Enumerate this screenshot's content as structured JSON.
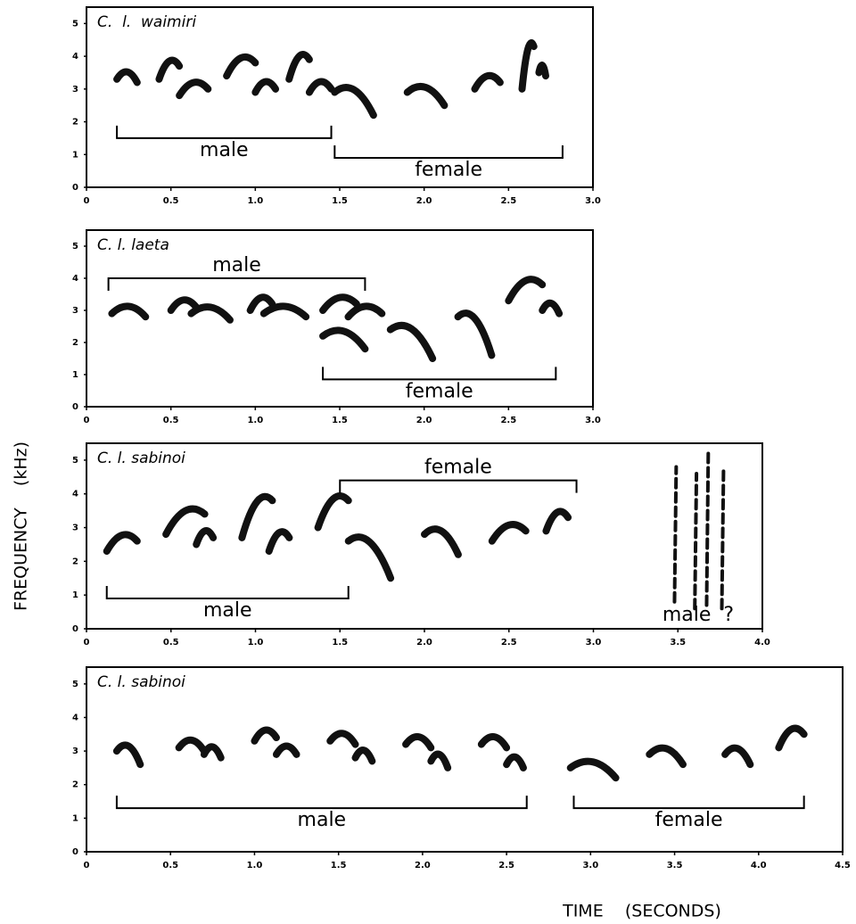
{
  "figure": {
    "xlabel": "TIME    (SECONDS)",
    "ylabel": "FREQUENCY    (kHz)"
  },
  "chart_data": [
    {
      "type": "spectrogram",
      "title": "C.  l.  waimiri",
      "xlim": [
        0,
        3
      ],
      "xticks": [
        0,
        0.5,
        {
          "value": 1,
          "label": "1.0"
        },
        1.5,
        {
          "value": 2,
          "label": "2.0"
        },
        2.5,
        {
          "value": 3,
          "label": "3.0"
        }
      ],
      "ylim": [
        0,
        5.5
      ],
      "yticks": [
        0,
        1,
        2,
        3,
        4,
        5
      ],
      "brackets": [
        {
          "text": "male",
          "start": 0.18,
          "end": 1.45,
          "y": 1.5,
          "open": "up"
        },
        {
          "text": "female",
          "start": 1.47,
          "end": 2.82,
          "y": 0.9,
          "open": "up"
        }
      ],
      "syllables": [
        [
          0.18,
          0.3,
          3.3,
          3.2
        ],
        [
          0.43,
          0.55,
          3.3,
          3.7
        ],
        [
          0.55,
          0.72,
          2.8,
          3.0
        ],
        [
          0.83,
          1.0,
          3.4,
          3.8
        ],
        [
          1.0,
          1.12,
          2.9,
          3.0
        ],
        [
          1.2,
          1.32,
          3.3,
          3.9
        ],
        [
          1.32,
          1.45,
          2.9,
          3.0
        ],
        [
          1.47,
          1.7,
          2.9,
          2.2
        ],
        [
          1.9,
          2.12,
          2.9,
          2.5
        ],
        [
          2.3,
          2.45,
          3.0,
          3.2
        ],
        [
          2.58,
          2.65,
          3.0,
          4.3
        ],
        [
          2.68,
          2.72,
          3.5,
          3.4
        ]
      ]
    },
    {
      "type": "spectrogram",
      "title": "C. l. laeta",
      "xlim": [
        0,
        3
      ],
      "xticks": [
        0,
        0.5,
        {
          "value": 1,
          "label": "1.0"
        },
        1.5,
        {
          "value": 2,
          "label": "2.0"
        },
        2.5,
        {
          "value": 3,
          "label": "3.0"
        }
      ],
      "ylim": [
        0,
        5.5
      ],
      "yticks": [
        0,
        1,
        2,
        3,
        4,
        5
      ],
      "brackets": [
        {
          "text": "male",
          "start": 0.13,
          "end": 1.65,
          "y": 4.0,
          "open": "down"
        },
        {
          "text": "female",
          "start": 1.4,
          "end": 2.78,
          "y": 0.85,
          "open": "up"
        }
      ],
      "syllables": [
        [
          0.15,
          0.35,
          2.9,
          2.8
        ],
        [
          0.5,
          0.65,
          3.0,
          3.1
        ],
        [
          0.62,
          0.85,
          2.9,
          2.7
        ],
        [
          0.97,
          1.1,
          3.0,
          3.2
        ],
        [
          1.05,
          1.3,
          2.9,
          2.8
        ],
        [
          1.4,
          1.6,
          3.0,
          3.2
        ],
        [
          1.55,
          1.75,
          2.8,
          2.9
        ],
        [
          1.4,
          1.65,
          2.2,
          1.8
        ],
        [
          1.8,
          2.05,
          2.4,
          1.5
        ],
        [
          2.2,
          2.4,
          2.8,
          1.6
        ],
        [
          2.5,
          2.7,
          3.3,
          3.8
        ],
        [
          2.7,
          2.8,
          3.0,
          2.9
        ]
      ]
    },
    {
      "type": "spectrogram",
      "title": "C. l. sabinoi",
      "xlim": [
        0,
        4
      ],
      "xticks": [
        0,
        0.5,
        {
          "value": 1,
          "label": "1.0"
        },
        1.5,
        {
          "value": 2,
          "label": "2.0"
        },
        2.5,
        {
          "value": 3,
          "label": "3.0"
        },
        3.5,
        {
          "value": 4,
          "label": "4.0"
        }
      ],
      "ylim": [
        0,
        5.5
      ],
      "yticks": [
        0,
        1,
        2,
        3,
        4,
        5
      ],
      "brackets": [
        {
          "text": "female",
          "start": 1.5,
          "end": 2.9,
          "y": 4.4,
          "open": "down"
        },
        {
          "text": "male",
          "start": 0.12,
          "end": 1.55,
          "y": 0.9,
          "open": "up"
        }
      ],
      "labels": [
        {
          "text": "male  ?",
          "x": 3.62,
          "y": 0.4
        }
      ],
      "syllables": [
        [
          0.12,
          0.3,
          2.3,
          2.6
        ],
        [
          0.47,
          0.7,
          2.8,
          3.4
        ],
        [
          0.65,
          0.75,
          2.5,
          2.7
        ],
        [
          0.92,
          1.1,
          2.7,
          3.8
        ],
        [
          1.08,
          1.2,
          2.3,
          2.7
        ],
        [
          1.37,
          1.55,
          3.0,
          3.8
        ],
        [
          1.55,
          1.8,
          2.6,
          1.5
        ],
        [
          2.0,
          2.2,
          2.8,
          2.2
        ],
        [
          2.4,
          2.6,
          2.6,
          2.9
        ],
        [
          2.72,
          2.85,
          2.9,
          3.3
        ],
        [
          3.48,
          3.49,
          0.8,
          4.8
        ],
        [
          3.6,
          3.61,
          0.6,
          4.6
        ],
        [
          3.67,
          3.68,
          0.7,
          5.3
        ],
        [
          3.76,
          3.77,
          0.6,
          4.7
        ]
      ]
    },
    {
      "type": "spectrogram",
      "title": "C. l. sabinoi",
      "xlim": [
        0,
        4.5
      ],
      "xticks": [
        0,
        0.5,
        {
          "value": 1,
          "label": "1.0"
        },
        1.5,
        {
          "value": 2,
          "label": "2.0"
        },
        2.5,
        {
          "value": 3,
          "label": "3.0"
        },
        3.5,
        {
          "value": 4,
          "label": "4.0"
        },
        4.5
      ],
      "ylim": [
        0,
        5.5
      ],
      "yticks": [
        0,
        1,
        2,
        3,
        4,
        5
      ],
      "brackets": [
        {
          "text": "male",
          "start": 0.18,
          "end": 2.62,
          "y": 1.3,
          "open": "up"
        },
        {
          "text": "female",
          "start": 2.9,
          "end": 4.27,
          "y": 1.3,
          "open": "up"
        }
      ],
      "syllables": [
        [
          0.18,
          0.32,
          3.0,
          2.6
        ],
        [
          0.55,
          0.7,
          3.1,
          3.0
        ],
        [
          0.7,
          0.8,
          2.9,
          2.8
        ],
        [
          1.0,
          1.13,
          3.3,
          3.4
        ],
        [
          1.13,
          1.25,
          2.9,
          2.9
        ],
        [
          1.45,
          1.6,
          3.3,
          3.2
        ],
        [
          1.6,
          1.7,
          2.8,
          2.7
        ],
        [
          1.9,
          2.05,
          3.2,
          3.1
        ],
        [
          2.05,
          2.15,
          2.7,
          2.5
        ],
        [
          2.35,
          2.5,
          3.2,
          3.1
        ],
        [
          2.5,
          2.6,
          2.6,
          2.5
        ],
        [
          2.88,
          3.15,
          2.5,
          2.2
        ],
        [
          3.35,
          3.55,
          2.9,
          2.6
        ],
        [
          3.8,
          3.95,
          2.9,
          2.6
        ],
        [
          4.12,
          4.27,
          3.1,
          3.5
        ]
      ]
    }
  ]
}
